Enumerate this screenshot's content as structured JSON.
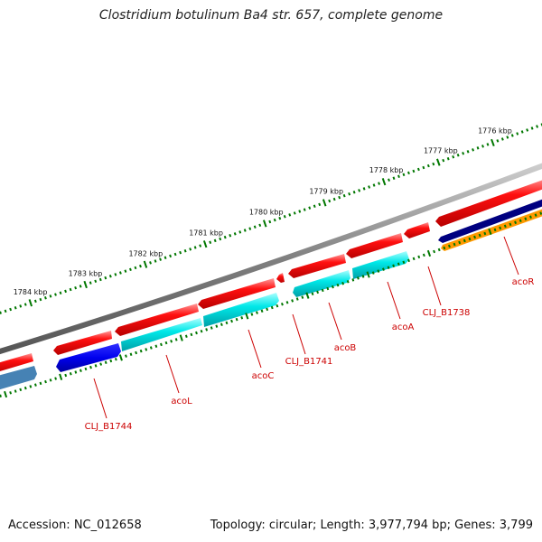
{
  "title": "Clostridium botulinum Ba4 str. 657, complete genome",
  "footer": {
    "accession": "Accession: NC_012658",
    "summary": "Topology: circular; Length: 3,977,794 bp; Genes: 3,799"
  },
  "ticks": [
    "1784 kbp",
    "1783 kbp",
    "1782 kbp",
    "1781 kbp",
    "1780 kbp",
    "1779 kbp",
    "1778 kbp",
    "1777 kbp",
    "1776 kbp"
  ],
  "gene_labels": [
    "CLJ_B1744",
    "acoL",
    "acoC",
    "CLJ_B1741",
    "acoB",
    "acoA",
    "CLJ_B1738",
    "acoR"
  ],
  "colors": {
    "backbone": "#808080",
    "forward_strand": "#ff0000",
    "cds_cyan": "#00e5e5",
    "cds_blue": "#0000ee",
    "cds_navy": "#000080",
    "cds_orange": "#ff9900",
    "cds_steel": "#4682b4",
    "tick": "#007700",
    "label": "#cc0000"
  }
}
